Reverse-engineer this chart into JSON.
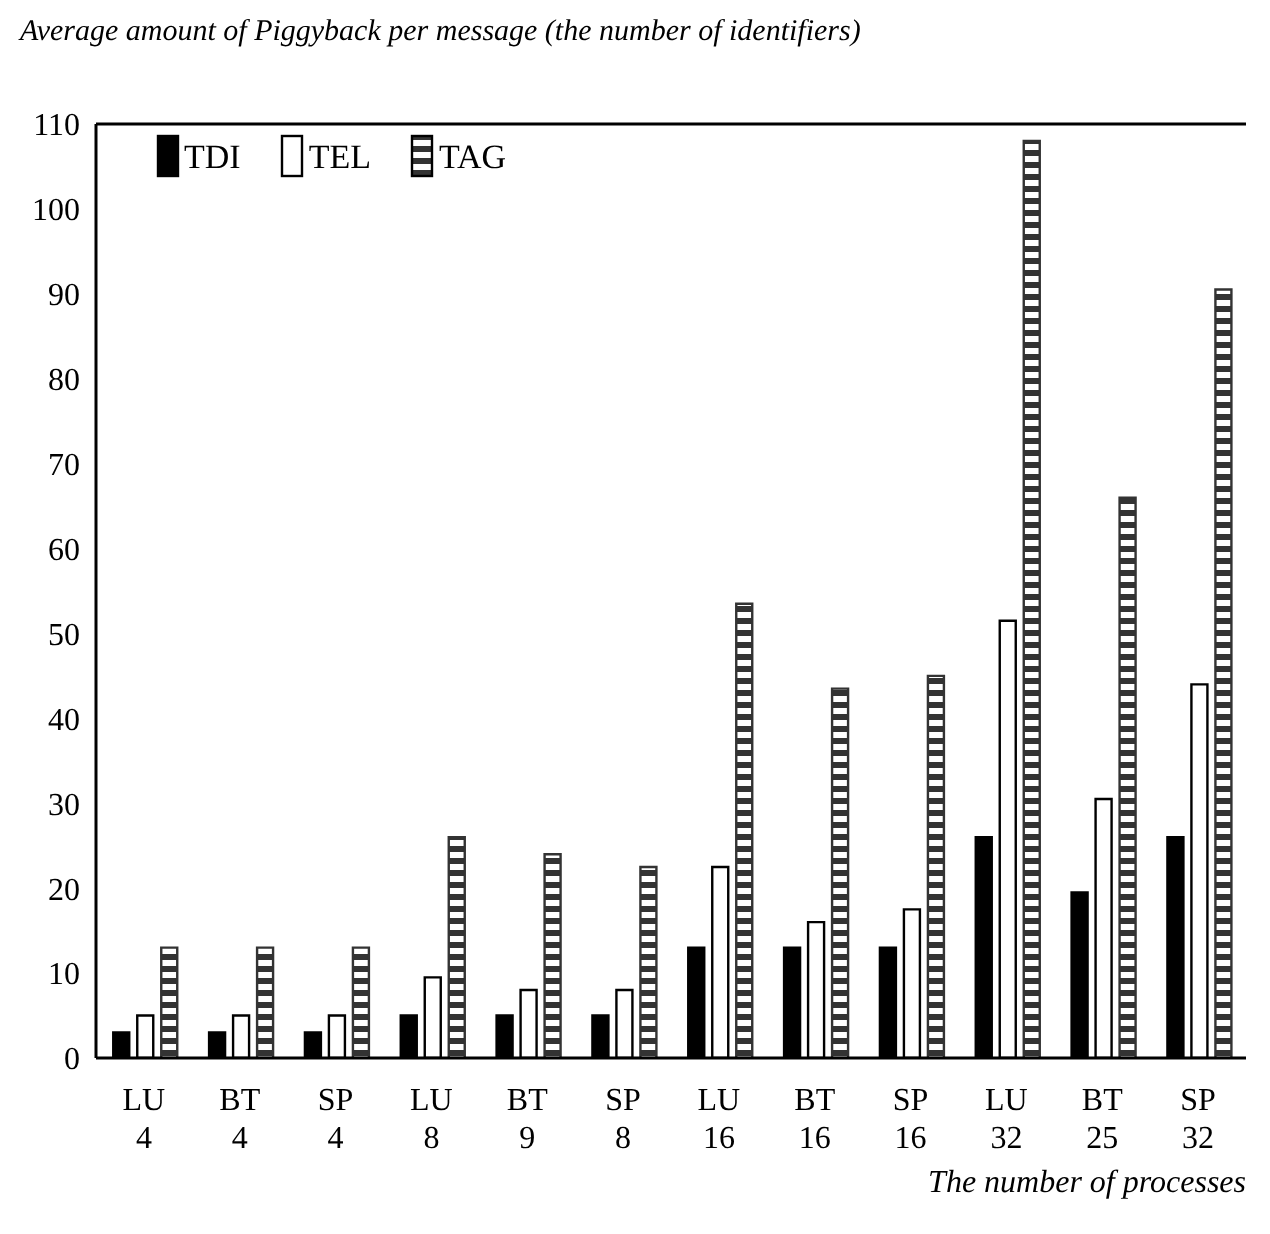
{
  "chart_data": {
    "type": "bar",
    "title": "Average amount of Piggyback per message (the number of identifiers)",
    "xlabel": "The number of processes",
    "categories": [
      "LU\n4",
      "BT\n4",
      "SP\n4",
      "LU\n8",
      "BT\n9",
      "SP\n8",
      "LU\n16",
      "BT\n16",
      "SP\n16",
      "LU\n32",
      "BT\n25",
      "SP\n32"
    ],
    "series": [
      {
        "name": "TDI",
        "color": "#000000",
        "values": [
          3,
          3,
          3,
          5,
          5,
          5,
          13,
          13,
          13,
          26,
          19.5,
          26
        ]
      },
      {
        "name": "TEL",
        "color": "#ffffff",
        "values": [
          5,
          5,
          5,
          9.5,
          8,
          8,
          22.5,
          16,
          17.5,
          51.5,
          30.5,
          44
        ]
      },
      {
        "name": "TAG",
        "color": "#333333",
        "values": [
          13,
          13,
          13,
          26,
          24,
          22.5,
          53.5,
          43.5,
          45,
          108,
          66,
          90.5
        ]
      }
    ],
    "ylim": [
      0,
      110
    ],
    "yticks": [
      0,
      10,
      20,
      30,
      40,
      50,
      60,
      70,
      80,
      90,
      100,
      110
    ],
    "grid": false,
    "legend": "top left"
  }
}
